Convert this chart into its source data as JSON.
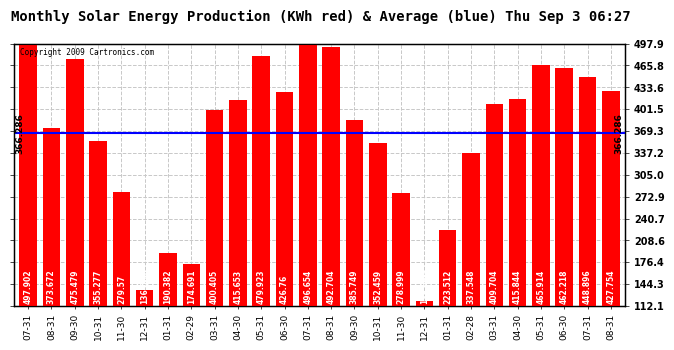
{
  "title": "Monthly Solar Energy Production (KWh red) & Average (blue) Thu Sep 3 06:27",
  "copyright": "Copyright 2009 Cartronics.com",
  "categories": [
    "07-31",
    "08-31",
    "09-30",
    "10-31",
    "11-30",
    "12-31",
    "01-31",
    "02-29",
    "03-31",
    "04-30",
    "05-31",
    "06-30",
    "07-31",
    "08-31",
    "09-30",
    "10-31",
    "11-30",
    "12-31",
    "01-31",
    "02-28",
    "03-31",
    "04-30",
    "05-31",
    "06-30",
    "07-31",
    "08-31"
  ],
  "values": [
    497.902,
    373.672,
    475.479,
    355.277,
    279.57,
    136.061,
    190.382,
    174.691,
    400.405,
    415.653,
    479.923,
    426.76,
    496.654,
    492.704,
    385.749,
    352.459,
    278.999,
    119.696,
    223.512,
    337.548,
    409.704,
    415.844,
    465.914,
    462.218,
    448.896,
    427.754
  ],
  "average": 366.286,
  "bar_color": "#ff0000",
  "avg_line_color": "#0000ff",
  "background_color": "#ffffff",
  "plot_bg_color": "#ffffff",
  "grid_color": "#c8c8c8",
  "ymin": 112.1,
  "ymax": 497.9,
  "yticks": [
    112.1,
    144.3,
    176.4,
    208.6,
    240.7,
    272.9,
    305.0,
    337.2,
    369.3,
    401.5,
    433.6,
    465.8,
    497.9
  ],
  "avg_label": "366.286",
  "title_fontsize": 10,
  "label_fontsize": 6.5,
  "tick_fontsize": 7,
  "value_fontsize": 5.5
}
